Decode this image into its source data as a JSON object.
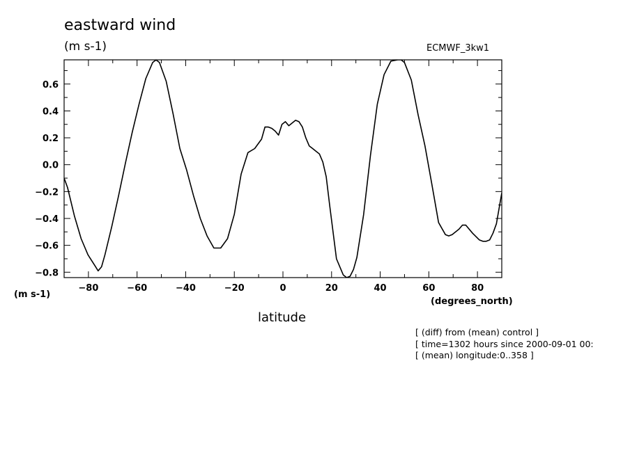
{
  "header": {
    "title": "eastward wind",
    "units": "(m s-1)",
    "model": "ECMWF_3kw1"
  },
  "axes": {
    "y_unit": "(m s-1)",
    "x_unit": "(degrees_north)",
    "x_label": "latitude"
  },
  "notes": [
    "[ (diff) from (mean) control ]",
    "[ time=1302 hours since 2000-09-01 00:",
    "[ (mean) longitude:0..358 ]"
  ],
  "chart_data": {
    "type": "line",
    "title": "eastward wind",
    "ylabel": "(m s-1)",
    "xlabel": "latitude",
    "xlim": [
      -90,
      90
    ],
    "ylim": [
      -0.84,
      0.78
    ],
    "xticks": [
      -80,
      -60,
      -40,
      -20,
      0,
      20,
      40,
      60,
      80
    ],
    "yticks": [
      -0.8,
      -0.6,
      -0.4,
      -0.2,
      0.0,
      0.2,
      0.4,
      0.6
    ],
    "xtick_labels": [
      "−80",
      "−60",
      "−40",
      "−20",
      "0",
      "20",
      "40",
      "60",
      "80"
    ],
    "ytick_labels": [
      "−0.8",
      "−0.6",
      "−0.4",
      "−0.2",
      "0.0",
      "0.2",
      "0.4",
      "0.6"
    ],
    "color": "#000000",
    "series": [
      {
        "x": [
          -90,
          -88.6,
          -85.8,
          -83.0,
          -80.2,
          -77.4,
          -76.0,
          -74.6,
          -73.2,
          -70.4,
          -67.6,
          -64.8,
          -62.0,
          -59.2,
          -56.4,
          -53.6,
          -52.2,
          -50.8,
          -48.0,
          -45.2,
          -42.4,
          -39.6,
          -36.8,
          -34.0,
          -31.2,
          -28.4,
          -25.6,
          -22.8,
          -20.0,
          -17.2,
          -14.4,
          -11.6,
          -8.8,
          -7.4,
          -6.0,
          -4.6,
          -3.2,
          -1.8,
          -0.4,
          1.0,
          2.4,
          3.8,
          5.2,
          6.6,
          8.0,
          9.4,
          10.8,
          12.2,
          13.6,
          15.0,
          16.4,
          17.8,
          19.2,
          22.0,
          24.8,
          26.2,
          27.6,
          29.0,
          30.4,
          33.2,
          36.0,
          38.8,
          41.6,
          44.4,
          47.2,
          48.6,
          50.0,
          52.8,
          55.6,
          58.4,
          61.2,
          64.0,
          66.8,
          68.2,
          69.6,
          72.4,
          73.8,
          75.2,
          78.0,
          80.8,
          82.2,
          83.6,
          85.0,
          86.4,
          87.8,
          90
        ],
        "y": [
          -0.1,
          -0.17,
          -0.38,
          -0.55,
          -0.67,
          -0.75,
          -0.79,
          -0.76,
          -0.67,
          -0.46,
          -0.23,
          0.01,
          0.24,
          0.45,
          0.64,
          0.76,
          0.78,
          0.76,
          0.62,
          0.38,
          0.12,
          -0.04,
          -0.23,
          -0.4,
          -0.53,
          -0.62,
          -0.62,
          -0.55,
          -0.37,
          -0.07,
          0.09,
          0.12,
          0.19,
          0.28,
          0.28,
          0.27,
          0.25,
          0.22,
          0.3,
          0.32,
          0.29,
          0.31,
          0.33,
          0.32,
          0.28,
          0.2,
          0.14,
          0.12,
          0.1,
          0.08,
          0.02,
          -0.09,
          -0.3,
          -0.7,
          -0.82,
          -0.84,
          -0.83,
          -0.78,
          -0.69,
          -0.37,
          0.07,
          0.45,
          0.67,
          0.77,
          0.78,
          0.78,
          0.76,
          0.63,
          0.37,
          0.14,
          -0.14,
          -0.43,
          -0.52,
          -0.53,
          -0.52,
          -0.48,
          -0.45,
          -0.45,
          -0.51,
          -0.56,
          -0.57,
          -0.57,
          -0.56,
          -0.51,
          -0.44,
          -0.21
        ]
      }
    ]
  }
}
